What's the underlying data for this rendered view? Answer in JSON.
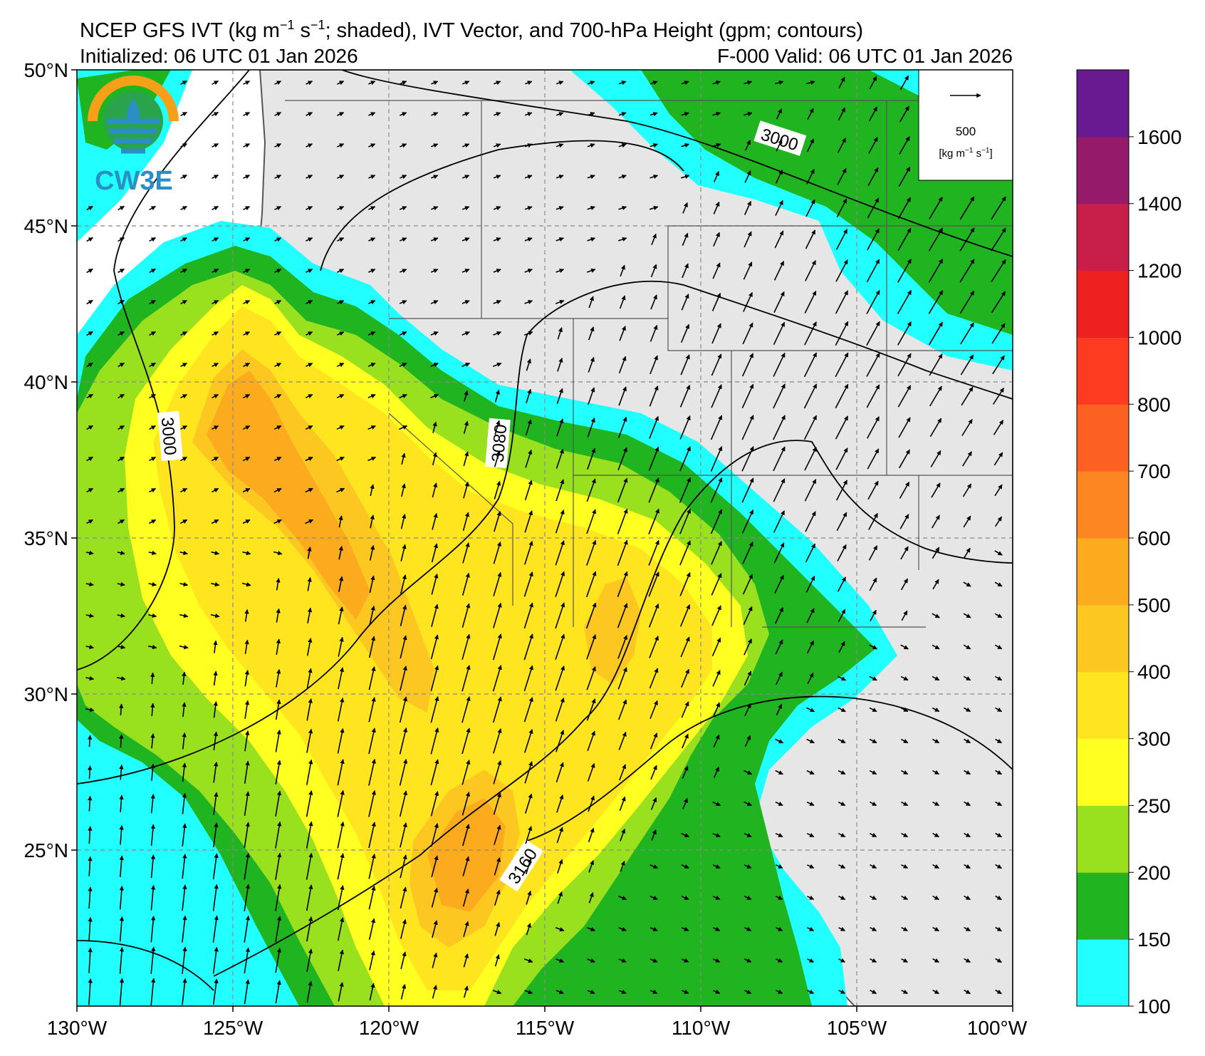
{
  "header": {
    "title_prefix": "NCEP GFS IVT (kg m",
    "title_exp1": "−1",
    "title_mid": " s",
    "title_exp2": "−1",
    "title_suffix": "; shaded), IVT Vector, and 700-hPa Height (gpm; contours)",
    "initialized": "Initialized: 06 UTC 01 Jan 2026",
    "valid": "F-000  Valid: 06 UTC 01 Jan 2026"
  },
  "logo": {
    "text": "CW3E"
  },
  "axes": {
    "lon_labels": [
      "130°W",
      "125°W",
      "120°W",
      "115°W",
      "110°W",
      "105°W",
      "100°W"
    ],
    "lat_labels": [
      "50°N",
      "45°N",
      "40°N",
      "35°N",
      "30°N",
      "25°N"
    ],
    "lon_range": [
      -130,
      -100
    ],
    "lat_range": [
      20,
      50
    ]
  },
  "contour_labels": [
    "3000",
    "3000",
    "3080",
    "3160"
  ],
  "reference_vector": {
    "value": "500",
    "units_prefix": "[kg m",
    "units_exp1": "−1",
    "units_mid": " s",
    "units_exp2": "−1",
    "units_suffix": "]"
  },
  "colorbar": {
    "labels": [
      "100",
      "150",
      "200",
      "250",
      "300",
      "400",
      "500",
      "600",
      "700",
      "800",
      "1000",
      "1200",
      "1400",
      "1600"
    ],
    "colors": [
      "#21ffff",
      "#21b421",
      "#99e01e",
      "#ffff21",
      "#ffe51f",
      "#fcc721",
      "#fcab1f",
      "#fc8621",
      "#fc6121",
      "#fc3b21",
      "#ee2121",
      "#c71f4a",
      "#951a6a",
      "#6a1a91"
    ]
  },
  "colors": {
    "land": "#e6e6e6",
    "ocean": "#ffffff",
    "border": "#555555",
    "contour": "#000000"
  }
}
